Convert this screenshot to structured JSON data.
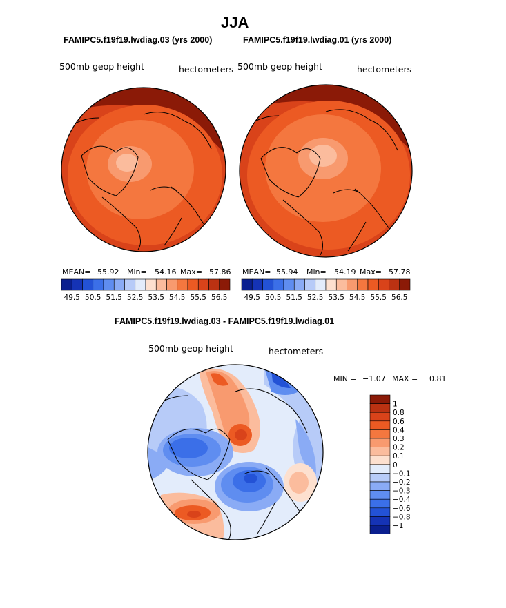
{
  "figure": {
    "season": "JJA",
    "case_a_title": "FAMIPC5.f19f19.lwdiag.03 (yrs 2000)",
    "case_b_title": "FAMIPC5.f19f19.lwdiag.01 (yrs 2000)",
    "diff_title": "FAMIPC5.f19f19.lwdiag.03 - FAMIPC5.f19f19.lwdiag.01"
  },
  "chart_data": [
    {
      "type": "heatmap",
      "projection": "north-polar-stereographic",
      "variable": "500mb geop height",
      "units": "hectometers",
      "stats": {
        "mean_label": "MEAN=",
        "mean": "55.92",
        "min_label": "Min=",
        "min": "54.16",
        "max_label": "Max=",
        "max": "57.86"
      },
      "levels": [
        "49.5",
        "50",
        "50.5",
        "51",
        "51.5",
        "52",
        "52.5",
        "53",
        "53.5",
        "54",
        "54.5",
        "55",
        "55.5",
        "56",
        "56.5"
      ],
      "colorbar_labels": [
        "49.5",
        "50.5",
        "51.5",
        "52.5",
        "53.5",
        "54.5",
        "55.5",
        "56.5"
      ],
      "colors": [
        "#0a1f8f",
        "#1533b5",
        "#2352d6",
        "#3b6fe8",
        "#5f8df0",
        "#8aabf5",
        "#b7cbf8",
        "#e3ecfb",
        "#fde0cf",
        "#fbbc9d",
        "#f89a6f",
        "#f4773f",
        "#ec5a23",
        "#d9431a",
        "#bb3212",
        "#8b1a07"
      ]
    },
    {
      "type": "heatmap",
      "projection": "north-polar-stereographic",
      "variable": "500mb geop height",
      "units": "hectometers",
      "stats": {
        "mean_label": "MEAN=",
        "mean": "55.94",
        "min_label": "Min=",
        "min": "54.19",
        "max_label": "Max=",
        "max": "57.78"
      },
      "levels": [
        "49.5",
        "50",
        "50.5",
        "51",
        "51.5",
        "52",
        "52.5",
        "53",
        "53.5",
        "54",
        "54.5",
        "55",
        "55.5",
        "56",
        "56.5"
      ],
      "colorbar_labels": [
        "49.5",
        "50.5",
        "51.5",
        "52.5",
        "53.5",
        "54.5",
        "55.5",
        "56.5"
      ],
      "colors": [
        "#0a1f8f",
        "#1533b5",
        "#2352d6",
        "#3b6fe8",
        "#5f8df0",
        "#8aabf5",
        "#b7cbf8",
        "#e3ecfb",
        "#fde0cf",
        "#fbbc9d",
        "#f89a6f",
        "#f4773f",
        "#ec5a23",
        "#d9431a",
        "#bb3212",
        "#8b1a07"
      ]
    },
    {
      "type": "heatmap",
      "projection": "north-polar-stereographic",
      "variable": "500mb geop height",
      "units": "hectometers",
      "stats": {
        "min_label": "MIN =",
        "min": "−1.07",
        "max_label": "MAX =",
        "max": "0.81"
      },
      "levels": [
        "1",
        "0.8",
        "0.6",
        "0.4",
        "0.3",
        "0.2",
        "0.1",
        "0",
        "−0.1",
        "−0.2",
        "−0.3",
        "−0.4",
        "−0.6",
        "−0.8",
        "−1"
      ],
      "colors": [
        "#8b1a07",
        "#bb3212",
        "#d9431a",
        "#ec5a23",
        "#f4773f",
        "#f89a6f",
        "#fbbc9d",
        "#fde0cf",
        "#e3ecfb",
        "#b7cbf8",
        "#8aabf5",
        "#5f8df0",
        "#3b6fe8",
        "#2352d6",
        "#1533b5",
        "#0a1f8f"
      ]
    }
  ]
}
